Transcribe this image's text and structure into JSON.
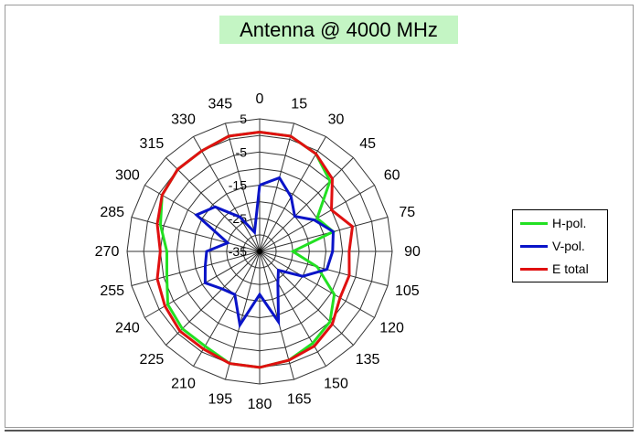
{
  "chart_data": {
    "type": "polar-line",
    "title": "Antenna @ 4000 MHz",
    "angles": [
      0,
      15,
      30,
      45,
      60,
      75,
      90,
      105,
      120,
      135,
      150,
      165,
      180,
      195,
      210,
      225,
      240,
      255,
      270,
      285,
      300,
      315,
      330,
      345
    ],
    "angle_labels": [
      "0",
      "15",
      "30",
      "45",
      "60",
      "75",
      "90",
      "105",
      "120",
      "135",
      "150",
      "165",
      "180",
      "195",
      "210",
      "225",
      "240",
      "255",
      "270",
      "285",
      "300",
      "315",
      "330",
      "345"
    ],
    "radial_labels": [
      "5",
      "-5",
      "-15",
      "-25",
      "-35"
    ],
    "r_range": [
      -35,
      5
    ],
    "r_ticks": [
      -35,
      -30,
      -25,
      -20,
      -15,
      -10,
      -5,
      0,
      5
    ],
    "legend_position": "right",
    "series": [
      {
        "name": "H-pol.",
        "color": "#22e022",
        "values": [
          1,
          1,
          -1,
          -5,
          -15,
          -12,
          -25,
          -17,
          -9,
          -5,
          -3,
          -1,
          0,
          0,
          -2,
          -2,
          -3,
          -6,
          -7,
          -4,
          -1,
          0,
          0,
          1
        ]
      },
      {
        "name": "V-pol.",
        "color": "#0a14c8",
        "values": [
          -15,
          -12,
          -16,
          -20,
          -16,
          -12,
          -13,
          -14,
          -20,
          -27,
          -24,
          -13,
          -22,
          -12,
          -20,
          -19,
          -16,
          -18,
          -19,
          -25,
          -13,
          -16,
          -23,
          -29
        ]
      },
      {
        "name": "E total",
        "color": "#e01010",
        "values": [
          1,
          1,
          -1,
          -4,
          -10,
          -6,
          -8,
          -7,
          -7,
          -4,
          -2,
          -1,
          0,
          0,
          -1,
          -1,
          -2,
          -3,
          -5,
          -3,
          -1,
          0,
          0,
          1
        ]
      }
    ]
  }
}
